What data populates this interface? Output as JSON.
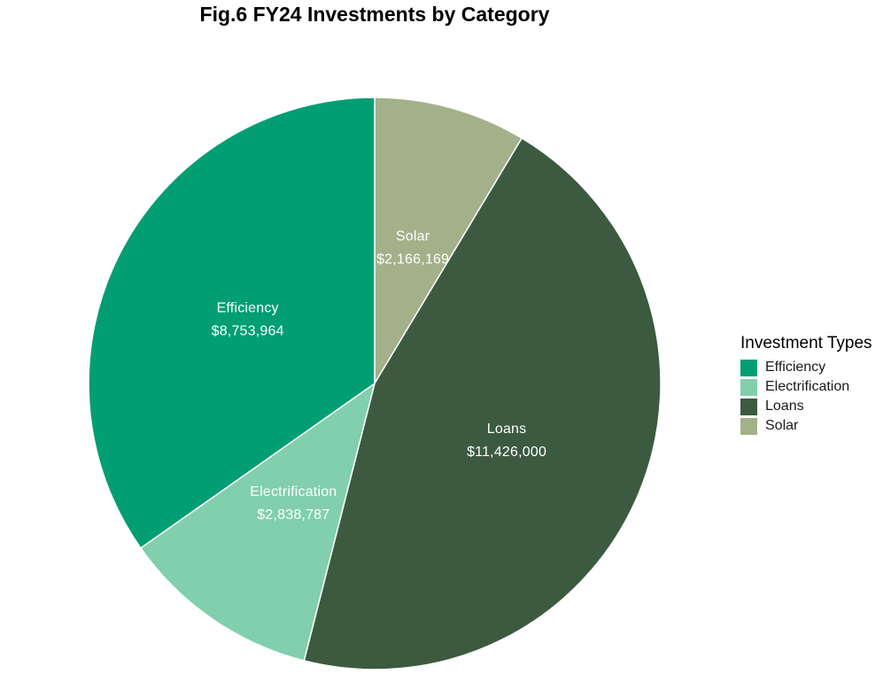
{
  "chart_data": {
    "type": "pie",
    "title": "Fig.6 FY24 Investments by Category",
    "slices": [
      {
        "name": "Efficiency",
        "value": 8753964,
        "label": "$8,753,964",
        "color": "#029e73"
      },
      {
        "name": "Electrification",
        "value": 2838787,
        "label": "$2,838,787",
        "color": "#81cfac"
      },
      {
        "name": "Loans",
        "value": 11426000,
        "label": "$11,426,000",
        "color": "#3c5a40"
      },
      {
        "name": "Solar",
        "value": 2166169,
        "label": "$2,166,169",
        "color": "#a3b18a"
      }
    ],
    "drawing_order": [
      "Solar",
      "Loans",
      "Electrification",
      "Efficiency"
    ],
    "direction": "clockwise",
    "start": "top",
    "legend": {
      "title": "Investment Types",
      "placement": "right",
      "items": [
        "Efficiency",
        "Electrification",
        "Loans",
        "Solar"
      ]
    }
  }
}
